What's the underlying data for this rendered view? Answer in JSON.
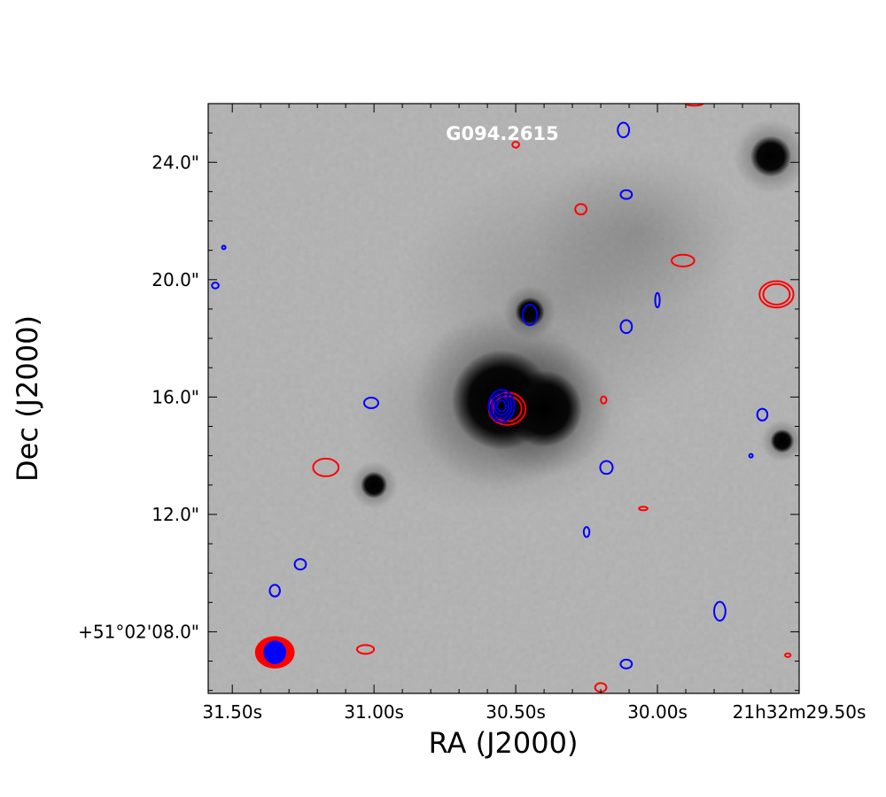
{
  "chart_data": {
    "type": "image_with_contours",
    "title": "G094.2615",
    "xlabel": "RA (J2000)",
    "ylabel": "Dec (J2000)",
    "x_ticks": [
      "31.50s",
      "31.00s",
      "30.50s",
      "30.00s",
      "21h32m29.50s"
    ],
    "y_ticks": [
      "+51°02'08.0\"",
      "12.0\"",
      "16.0\"",
      "20.0\"",
      "24.0\""
    ],
    "x_tick_values_s": [
      31.5,
      31.0,
      30.5,
      30.0,
      29.5
    ],
    "y_tick_values_arcsec": [
      8,
      12,
      16,
      20,
      24
    ],
    "xlim_s": [
      31.585,
      29.5
    ],
    "ylim_arcsec": [
      5.9,
      26.0
    ],
    "background": "greyscale infrared image (inverted: dark = bright emission)",
    "contour_colors": {
      "red": "#ff0000",
      "blue": "#0000ff"
    },
    "sources": [
      {
        "name": "main-source",
        "ra_s": 30.55,
        "dec_arcsec": 15.9,
        "size_arcsec": 1.7
      },
      {
        "name": "companion-source",
        "ra_s": 30.4,
        "dec_arcsec": 15.6,
        "size_arcsec": 1.3
      },
      {
        "name": "knot-north",
        "ra_s": 30.45,
        "dec_arcsec": 18.9,
        "size_arcsec": 0.5
      },
      {
        "name": "star-northwest",
        "ra_s": 29.6,
        "dec_arcsec": 24.2,
        "size_arcsec": 0.7
      },
      {
        "name": "star-west",
        "ra_s": 29.56,
        "dec_arcsec": 14.5,
        "size_arcsec": 0.4
      },
      {
        "name": "star-south",
        "ra_s": 31.0,
        "dec_arcsec": 13.0,
        "size_arcsec": 0.45
      }
    ],
    "red_contours": [
      {
        "ra_s": 30.53,
        "dec_arcsec": 15.6,
        "rx": 0.065,
        "ry": 0.55,
        "levels": 2
      },
      {
        "ra_s": 29.58,
        "dec_arcsec": 19.5,
        "rx": 0.06,
        "ry": 0.45,
        "levels": 2
      },
      {
        "ra_s": 29.91,
        "dec_arcsec": 20.65,
        "rx": 0.04,
        "ry": 0.2,
        "levels": 1
      },
      {
        "ra_s": 30.27,
        "dec_arcsec": 22.4,
        "rx": 0.02,
        "ry": 0.18,
        "levels": 1
      },
      {
        "ra_s": 31.17,
        "dec_arcsec": 13.6,
        "rx": 0.045,
        "ry": 0.3,
        "levels": 1
      },
      {
        "ra_s": 31.03,
        "dec_arcsec": 7.4,
        "rx": 0.03,
        "ry": 0.15,
        "levels": 1
      },
      {
        "ra_s": 30.2,
        "dec_arcsec": 6.1,
        "rx": 0.02,
        "ry": 0.15,
        "levels": 1
      },
      {
        "ra_s": 30.5,
        "dec_arcsec": 24.6,
        "rx": 0.012,
        "ry": 0.1,
        "levels": 1
      },
      {
        "ra_s": 30.19,
        "dec_arcsec": 15.9,
        "rx": 0.01,
        "ry": 0.12,
        "levels": 1
      },
      {
        "ra_s": 30.05,
        "dec_arcsec": 12.2,
        "rx": 0.015,
        "ry": 0.06,
        "levels": 1
      },
      {
        "ra_s": 29.54,
        "dec_arcsec": 7.2,
        "rx": 0.01,
        "ry": 0.05,
        "levels": 1
      },
      {
        "ra_s": 29.87,
        "dec_arcsec": 26.0,
        "rx": 0.03,
        "ry": 0.07,
        "levels": 1
      }
    ],
    "blue_contours": [
      {
        "ra_s": 30.55,
        "dec_arcsec": 15.7,
        "rx": 0.045,
        "ry": 0.55,
        "levels": 4
      },
      {
        "ra_s": 30.12,
        "dec_arcsec": 25.1,
        "rx": 0.02,
        "ry": 0.25,
        "levels": 1
      },
      {
        "ra_s": 30.11,
        "dec_arcsec": 22.9,
        "rx": 0.02,
        "ry": 0.15,
        "levels": 1
      },
      {
        "ra_s": 30.45,
        "dec_arcsec": 18.8,
        "rx": 0.025,
        "ry": 0.35,
        "levels": 1
      },
      {
        "ra_s": 30.11,
        "dec_arcsec": 18.4,
        "rx": 0.02,
        "ry": 0.22,
        "levels": 1
      },
      {
        "ra_s": 30.0,
        "dec_arcsec": 19.3,
        "rx": 0.008,
        "ry": 0.25,
        "levels": 1
      },
      {
        "ra_s": 31.01,
        "dec_arcsec": 15.8,
        "rx": 0.025,
        "ry": 0.18,
        "levels": 1
      },
      {
        "ra_s": 30.18,
        "dec_arcsec": 13.6,
        "rx": 0.022,
        "ry": 0.22,
        "levels": 1
      },
      {
        "ra_s": 29.63,
        "dec_arcsec": 15.4,
        "rx": 0.018,
        "ry": 0.2,
        "levels": 1
      },
      {
        "ra_s": 30.25,
        "dec_arcsec": 11.4,
        "rx": 0.01,
        "ry": 0.17,
        "levels": 1
      },
      {
        "ra_s": 31.26,
        "dec_arcsec": 10.3,
        "rx": 0.02,
        "ry": 0.18,
        "levels": 1
      },
      {
        "ra_s": 31.35,
        "dec_arcsec": 9.4,
        "rx": 0.018,
        "ry": 0.2,
        "levels": 1
      },
      {
        "ra_s": 29.78,
        "dec_arcsec": 8.7,
        "rx": 0.02,
        "ry": 0.32,
        "levels": 1
      },
      {
        "ra_s": 30.11,
        "dec_arcsec": 6.9,
        "rx": 0.02,
        "ry": 0.15,
        "levels": 1
      },
      {
        "ra_s": 31.56,
        "dec_arcsec": 19.8,
        "rx": 0.012,
        "ry": 0.1,
        "levels": 1
      },
      {
        "ra_s": 31.53,
        "dec_arcsec": 21.1,
        "rx": 0.005,
        "ry": 0.04,
        "levels": 1
      },
      {
        "ra_s": 29.67,
        "dec_arcsec": 14.0,
        "rx": 0.004,
        "ry": 0.05,
        "levels": 1
      }
    ],
    "beam": {
      "ra_s": 31.35,
      "dec_arcsec": 7.3,
      "red": {
        "rx": 0.07,
        "ry": 0.55
      },
      "blue": {
        "rx": 0.04,
        "ry": 0.4
      }
    }
  }
}
